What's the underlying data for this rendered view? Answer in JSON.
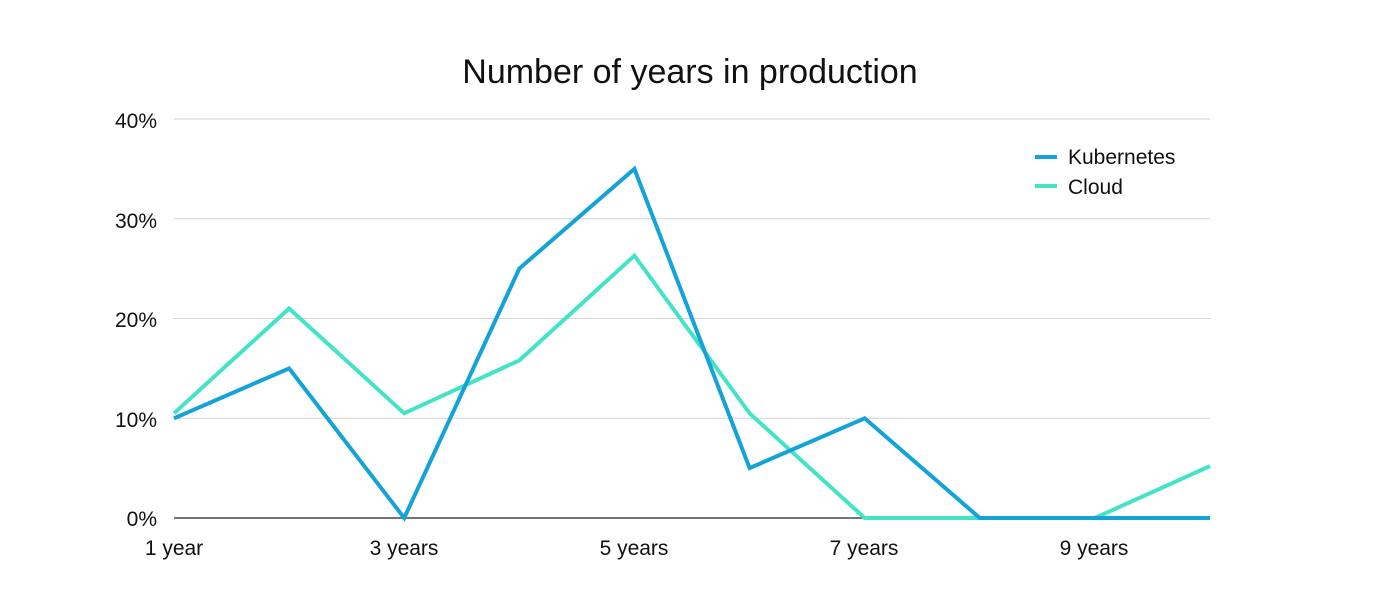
{
  "chart_data": {
    "type": "line",
    "title": "Number of years in production",
    "xlabel": "",
    "ylabel": "",
    "x": [
      "1 year",
      "2 years",
      "3 years",
      "4 years",
      "5 years",
      "6 years",
      "7 years",
      "8 years",
      "9 years",
      "10 years"
    ],
    "x_tick_labels": [
      "1 year",
      "3 years",
      "5 years",
      "7 years",
      "9 years"
    ],
    "y_tick_labels": [
      "0%",
      "10%",
      "20%",
      "30%",
      "40%"
    ],
    "ylim": [
      0,
      40
    ],
    "grid": true,
    "legend_position": "top-right",
    "series": [
      {
        "name": "Kubernetes",
        "color": "#13a3d6",
        "values": [
          10,
          15,
          0,
          25,
          35,
          5,
          10,
          0,
          0,
          0
        ]
      },
      {
        "name": "Cloud",
        "color": "#44e3c8",
        "values": [
          10.5,
          21,
          10.5,
          15.8,
          26.3,
          10.5,
          0,
          0,
          0,
          5.2
        ]
      }
    ]
  }
}
